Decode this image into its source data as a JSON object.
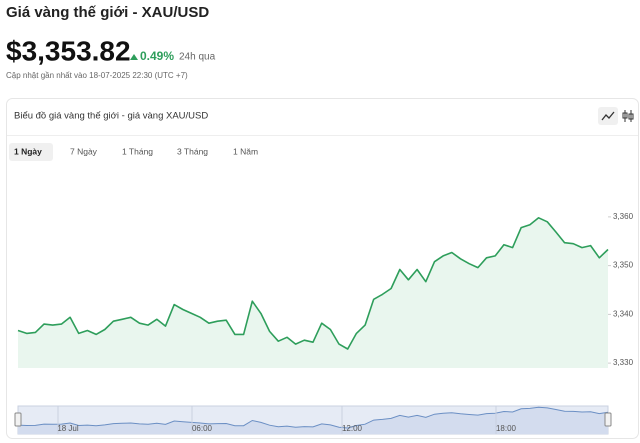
{
  "header": {
    "title": "Giá vàng thế giới - XAU/USD",
    "price": "$3,353.82",
    "change": "0.49%",
    "period": "24h qua",
    "updated": "Cập nhật gần nhất vào 18-07-2025 22:30 (UTC +7)"
  },
  "tabs": [
    "1 Ngày",
    "7 Ngày",
    "1 Tháng",
    "3 Tháng",
    "1 Năm"
  ],
  "selected_tab": 0,
  "chart_data": {
    "type": "area",
    "title": "Biểu đồ giá vàng thế giới - giá vàng XAU/USD",
    "color": "#2e9e5b",
    "fill": "#e9f6ee",
    "values": [
      3336.7,
      3336.1,
      3336.3,
      3338.0,
      3337.8,
      3338.0,
      3339.4,
      3336.1,
      3336.7,
      3335.9,
      3336.9,
      3338.6,
      3339.0,
      3339.4,
      3338.2,
      3337.8,
      3339.0,
      3337.6,
      3342.0,
      3341.0,
      3340.2,
      3339.4,
      3338.2,
      3338.6,
      3338.8,
      3335.9,
      3335.9,
      3342.7,
      3340.2,
      3336.5,
      3334.5,
      3335.3,
      3333.9,
      3334.7,
      3334.3,
      3338.2,
      3336.9,
      3333.9,
      3332.9,
      3336.1,
      3337.8,
      3343.1,
      3344.1,
      3345.3,
      3349.2,
      3347.1,
      3349.2,
      3346.7,
      3350.8,
      3352.0,
      3352.7,
      3351.4,
      3350.4,
      3349.6,
      3351.6,
      3352.0,
      3354.3,
      3353.7,
      3357.8,
      3358.4,
      3359.8,
      3359.0,
      3356.9,
      3354.7,
      3354.5,
      3353.7,
      3354.1,
      3351.6,
      3353.3
    ],
    "ylim": [
      3329,
      3369
    ],
    "yticks": [
      {
        "value": 3330,
        "label": "3,330"
      },
      {
        "value": 3340,
        "label": "3,340"
      },
      {
        "value": 3350,
        "label": "3,350"
      },
      {
        "value": 3360,
        "label": "3,360"
      }
    ],
    "navigator_labels": [
      "18 Jul",
      "06:00",
      "12:00",
      "18:00"
    ],
    "navigator_color": "#6b8fc4"
  }
}
